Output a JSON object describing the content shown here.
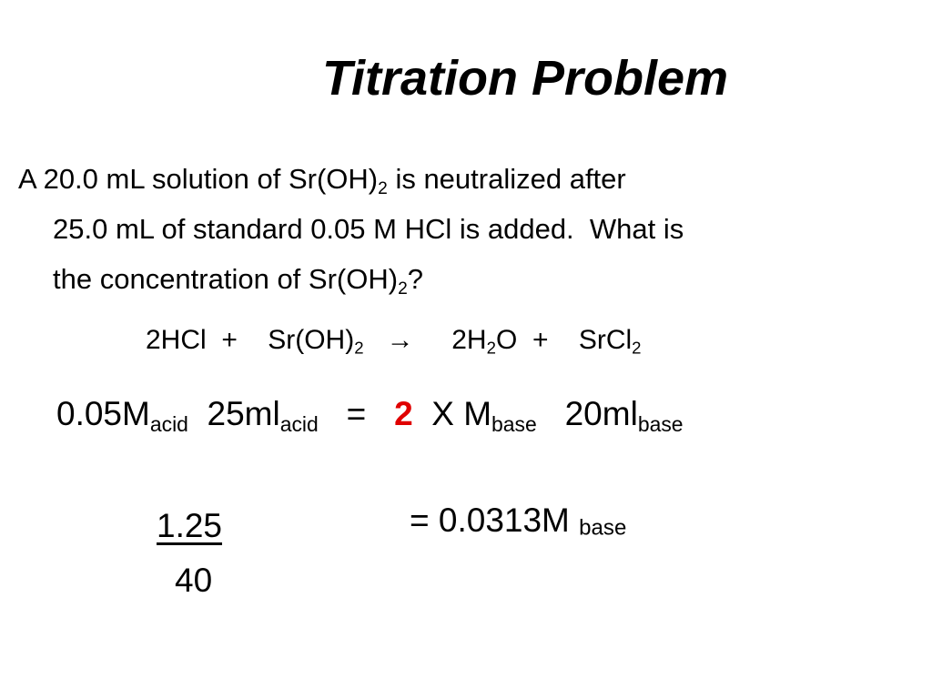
{
  "title": "Titration Problem",
  "problem": {
    "line1": [
      "A 20.0 mL solution of Sr(OH)",
      "2",
      " is neutralized after"
    ],
    "line2": [
      "25.0 mL of standard 0.05 M HCl is added.  What is"
    ],
    "line3": [
      "the concentration of Sr(OH)",
      "2",
      "?"
    ]
  },
  "reaction": [
    "2HCl  +    Sr(OH)",
    "2",
    "→",
    "2H",
    "2",
    "O  +    SrCl",
    "2"
  ],
  "setup": [
    "0.05M",
    "acid",
    "25ml",
    "acid",
    "=",
    "2",
    "X M",
    "base",
    "20ml",
    "base"
  ],
  "fraction": {
    "numerator": "1.25",
    "denominator": "40"
  },
  "result": [
    "= 0.0313M",
    "base"
  ]
}
